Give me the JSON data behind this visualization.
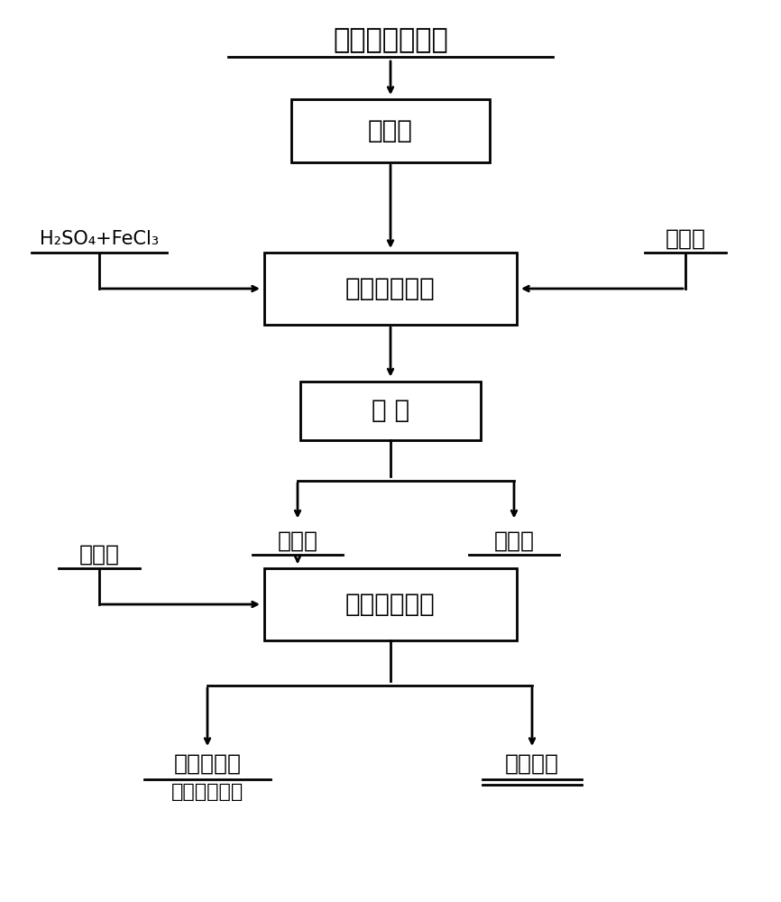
{
  "bg_color": "#ffffff",
  "text_color": "#000000",
  "box_color": "#ffffff",
  "box_edge_color": "#000000",
  "line_color": "#000000",
  "top_label": "镍钼矿冶炼烟尘",
  "box1_label": "预处理",
  "box2_label": "催化氧化浸出",
  "box3_label": "过 滤",
  "left_label1": "H₂SO₄+FeCl₃",
  "right_label1": "氧化剂",
  "left_split_label": "浸出液",
  "right_split_label": "浸出渣",
  "left_label2": "还原剂",
  "box4_label": "控制电位还原",
  "bottom_left_label": "还原后残液",
  "bottom_left_sub": "（综合处理）",
  "bottom_right_label": "工业硒粉",
  "font_size_box": 20,
  "font_size_label": 18,
  "font_size_top": 22
}
